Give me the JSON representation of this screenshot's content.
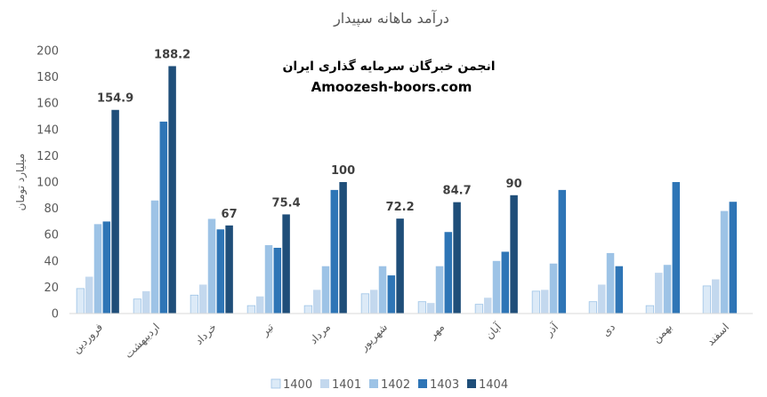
{
  "chart_data": {
    "type": "bar",
    "title": "درآمد ماهانه سپیدار",
    "ylabel": "میلیارد تومان",
    "ylim": [
      0,
      200
    ],
    "yticks": [
      0,
      20,
      40,
      60,
      80,
      100,
      120,
      140,
      160,
      180,
      200
    ],
    "grid": false,
    "legend_position": "bottom",
    "categories": [
      "فروردین",
      "اردیبهشت",
      "خرداد",
      "تیر",
      "مرداد",
      "شهریور",
      "مهر",
      "آبان",
      "آذر",
      "دی",
      "بهمن",
      "اسفند"
    ],
    "series": [
      {
        "name": "1400",
        "color": "#dceaf7",
        "values": [
          19,
          11,
          14,
          6,
          6,
          15,
          9,
          7,
          17,
          9,
          6,
          21
        ]
      },
      {
        "name": "1401",
        "color": "#c3d8ee",
        "values": [
          28,
          17,
          22,
          13,
          18,
          18,
          8,
          12,
          18,
          22,
          31,
          26
        ]
      },
      {
        "name": "1402",
        "color": "#9dc3e6",
        "values": [
          68,
          86,
          72,
          52,
          36,
          36,
          36,
          40,
          38,
          46,
          37,
          78
        ]
      },
      {
        "name": "1403",
        "color": "#2e75b6",
        "values": [
          70,
          146,
          64,
          50,
          94,
          29,
          62,
          47,
          94,
          36,
          100,
          85
        ]
      },
      {
        "name": "1404",
        "color": "#1f4e79",
        "values": [
          154.9,
          188.2,
          67,
          75.4,
          100,
          72.2,
          84.7,
          90,
          null,
          null,
          null,
          null
        ]
      }
    ],
    "data_labels": [
      {
        "category": 0,
        "series": 4,
        "text": "154.9"
      },
      {
        "category": 1,
        "series": 4,
        "text": "188.2"
      },
      {
        "category": 2,
        "series": 4,
        "text": "67"
      },
      {
        "category": 3,
        "series": 4,
        "text": "75.4"
      },
      {
        "category": 4,
        "series": 4,
        "text": "100"
      },
      {
        "category": 5,
        "series": 4,
        "text": "72.2"
      },
      {
        "category": 6,
        "series": 4,
        "text": "84.7"
      },
      {
        "category": 7,
        "series": 4,
        "text": "90"
      }
    ]
  },
  "watermark": {
    "line1": "انجمن خبرگان سرمایه گذاری ایران",
    "line2": "Amoozesh-boors.com"
  }
}
